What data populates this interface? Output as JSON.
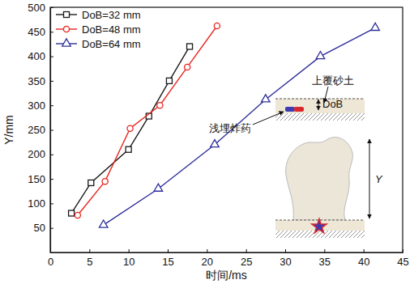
{
  "chart_data": {
    "type": "line",
    "x_label": "时间/ms",
    "y_label": "Y/mm",
    "xlim": [
      0,
      45
    ],
    "xticks": [
      0,
      5,
      10,
      15,
      20,
      25,
      30,
      35,
      40,
      45
    ],
    "ylim": [
      0,
      500
    ],
    "yticks": [
      50,
      100,
      150,
      200,
      250,
      300,
      350,
      400,
      450,
      500
    ],
    "legend": "upper left",
    "series": [
      {
        "name": "DoB=32 mm",
        "color": "#1a1a1a",
        "marker": "square",
        "x": [
          2.7,
          5.2,
          10.0,
          12.6,
          15.2,
          17.8
        ],
        "values": [
          80,
          142,
          210,
          278,
          350,
          420
        ]
      },
      {
        "name": "DoB=48 mm",
        "color": "#e8251f",
        "marker": "circle",
        "x": [
          3.5,
          7.0,
          10.2,
          14.0,
          17.5,
          21.3
        ],
        "values": [
          76,
          145,
          253,
          300,
          378,
          462
        ]
      },
      {
        "name": "DoB=64 mm",
        "color": "#2e2e9a",
        "marker": "triangle",
        "x": [
          6.8,
          13.8,
          21.0,
          27.5,
          34.5,
          41.5
        ],
        "values": [
          56,
          130,
          220,
          312,
          400,
          458
        ]
      }
    ],
    "annotations": [
      "上覆砂土",
      "浅埋炸药",
      "DoB",
      "Y"
    ]
  }
}
